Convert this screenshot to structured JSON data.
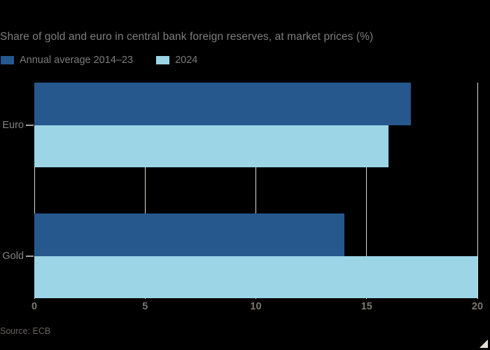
{
  "title": "Share of gold and euro in central bank foreign reserves, at market prices (%)",
  "source": "Source: ECB",
  "colors": {
    "background": "#000000",
    "series_dark_blue": "#26588e",
    "series_light_blue": "#9bd5e6",
    "gridline": "#e3dacf",
    "category_tick_dash": "#a9a49c",
    "corner_mark": "#e6ded4",
    "title_text": "#7e7e7e",
    "legend_text": "#7b7b7b",
    "category_text": "#848484",
    "axis_tick_text": "#7c766e",
    "source_text": "#6a645e"
  },
  "legend": {
    "items": [
      {
        "label": "Annual average 2014–23",
        "color": "#26588e"
      },
      {
        "label": "2024",
        "color": "#9bd5e6"
      }
    ]
  },
  "chart_data": {
    "type": "bar",
    "orientation": "horizontal",
    "title": "Share of gold and euro in central bank foreign reserves, at market prices (%)",
    "categories": [
      "Euro",
      "Gold"
    ],
    "series": [
      {
        "name": "Annual average 2014–23",
        "color": "#26588e",
        "values": [
          17,
          14
        ]
      },
      {
        "name": "2024",
        "color": "#9bd5e6",
        "values": [
          16,
          20
        ]
      }
    ],
    "xlim": [
      0,
      20
    ],
    "xticks": [
      0,
      5,
      10,
      15,
      20
    ],
    "xlabel": "",
    "ylabel": "",
    "grid": "vertical",
    "legend_position": "top-left",
    "source": "Source: ECB"
  }
}
